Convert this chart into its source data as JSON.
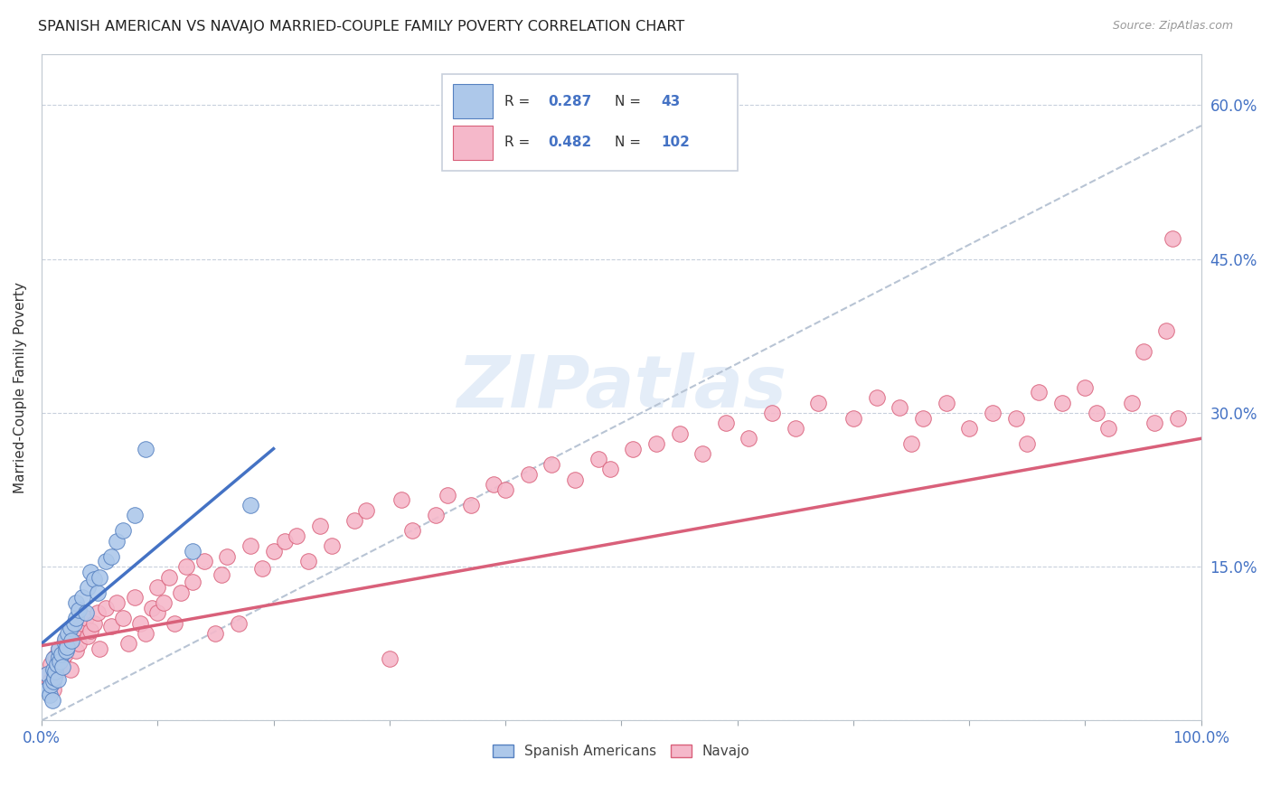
{
  "title": "SPANISH AMERICAN VS NAVAJO MARRIED-COUPLE FAMILY POVERTY CORRELATION CHART",
  "source": "Source: ZipAtlas.com",
  "ylabel": "Married-Couple Family Poverty",
  "xlim": [
    0,
    1.0
  ],
  "ylim": [
    0,
    0.65
  ],
  "blue_R": 0.287,
  "blue_N": 43,
  "pink_R": 0.482,
  "pink_N": 102,
  "blue_color": "#adc8ea",
  "pink_color": "#f5b8ca",
  "blue_edge_color": "#5580c0",
  "pink_edge_color": "#d9607a",
  "blue_line_color": "#4472c4",
  "pink_line_color": "#d9607a",
  "dash_line_color": "#b8c4d4",
  "watermark": "ZIPatlas",
  "legend_label_blue": "Spanish Americans",
  "legend_label_pink": "Navajo",
  "blue_scatter_x": [
    0.005,
    0.005,
    0.007,
    0.008,
    0.009,
    0.01,
    0.01,
    0.01,
    0.011,
    0.012,
    0.013,
    0.014,
    0.015,
    0.015,
    0.016,
    0.017,
    0.018,
    0.02,
    0.02,
    0.021,
    0.022,
    0.023,
    0.025,
    0.026,
    0.028,
    0.03,
    0.03,
    0.032,
    0.035,
    0.038,
    0.04,
    0.042,
    0.045,
    0.048,
    0.05,
    0.055,
    0.06,
    0.065,
    0.07,
    0.08,
    0.09,
    0.13,
    0.18
  ],
  "blue_scatter_y": [
    0.03,
    0.045,
    0.025,
    0.035,
    0.02,
    0.038,
    0.05,
    0.06,
    0.042,
    0.048,
    0.055,
    0.04,
    0.062,
    0.07,
    0.058,
    0.065,
    0.052,
    0.075,
    0.08,
    0.068,
    0.072,
    0.085,
    0.09,
    0.078,
    0.095,
    0.1,
    0.115,
    0.108,
    0.12,
    0.105,
    0.13,
    0.145,
    0.138,
    0.125,
    0.14,
    0.155,
    0.16,
    0.175,
    0.185,
    0.2,
    0.265,
    0.165,
    0.21
  ],
  "pink_scatter_x": [
    0.005,
    0.007,
    0.008,
    0.01,
    0.01,
    0.012,
    0.013,
    0.015,
    0.015,
    0.016,
    0.018,
    0.02,
    0.02,
    0.022,
    0.025,
    0.025,
    0.028,
    0.03,
    0.03,
    0.032,
    0.035,
    0.038,
    0.04,
    0.042,
    0.045,
    0.048,
    0.05,
    0.055,
    0.06,
    0.065,
    0.07,
    0.075,
    0.08,
    0.085,
    0.09,
    0.095,
    0.1,
    0.1,
    0.105,
    0.11,
    0.115,
    0.12,
    0.125,
    0.13,
    0.14,
    0.15,
    0.155,
    0.16,
    0.17,
    0.18,
    0.19,
    0.2,
    0.21,
    0.22,
    0.23,
    0.24,
    0.25,
    0.27,
    0.28,
    0.3,
    0.31,
    0.32,
    0.34,
    0.35,
    0.37,
    0.39,
    0.4,
    0.42,
    0.44,
    0.46,
    0.48,
    0.49,
    0.51,
    0.53,
    0.55,
    0.57,
    0.59,
    0.61,
    0.63,
    0.65,
    0.67,
    0.7,
    0.72,
    0.74,
    0.75,
    0.76,
    0.78,
    0.8,
    0.82,
    0.84,
    0.85,
    0.86,
    0.88,
    0.9,
    0.91,
    0.92,
    0.94,
    0.95,
    0.96,
    0.97,
    0.975,
    0.98
  ],
  "pink_scatter_y": [
    0.045,
    0.038,
    0.055,
    0.042,
    0.03,
    0.062,
    0.048,
    0.06,
    0.07,
    0.052,
    0.058,
    0.065,
    0.078,
    0.072,
    0.08,
    0.05,
    0.085,
    0.068,
    0.09,
    0.075,
    0.095,
    0.1,
    0.082,
    0.088,
    0.095,
    0.105,
    0.07,
    0.11,
    0.092,
    0.115,
    0.1,
    0.075,
    0.12,
    0.095,
    0.085,
    0.11,
    0.13,
    0.105,
    0.115,
    0.14,
    0.095,
    0.125,
    0.15,
    0.135,
    0.155,
    0.085,
    0.142,
    0.16,
    0.095,
    0.17,
    0.148,
    0.165,
    0.175,
    0.18,
    0.155,
    0.19,
    0.17,
    0.195,
    0.205,
    0.06,
    0.215,
    0.185,
    0.2,
    0.22,
    0.21,
    0.23,
    0.225,
    0.24,
    0.25,
    0.235,
    0.255,
    0.245,
    0.265,
    0.27,
    0.28,
    0.26,
    0.29,
    0.275,
    0.3,
    0.285,
    0.31,
    0.295,
    0.315,
    0.305,
    0.27,
    0.295,
    0.31,
    0.285,
    0.3,
    0.295,
    0.27,
    0.32,
    0.31,
    0.325,
    0.3,
    0.285,
    0.31,
    0.36,
    0.29,
    0.38,
    0.47,
    0.295
  ],
  "blue_line_x": [
    0.0,
    0.2
  ],
  "blue_line_y": [
    0.075,
    0.265
  ],
  "pink_line_x": [
    0.0,
    1.0
  ],
  "pink_line_y": [
    0.073,
    0.275
  ],
  "dash_line_x": [
    0.0,
    1.0
  ],
  "dash_line_y": [
    0.0,
    0.58
  ]
}
